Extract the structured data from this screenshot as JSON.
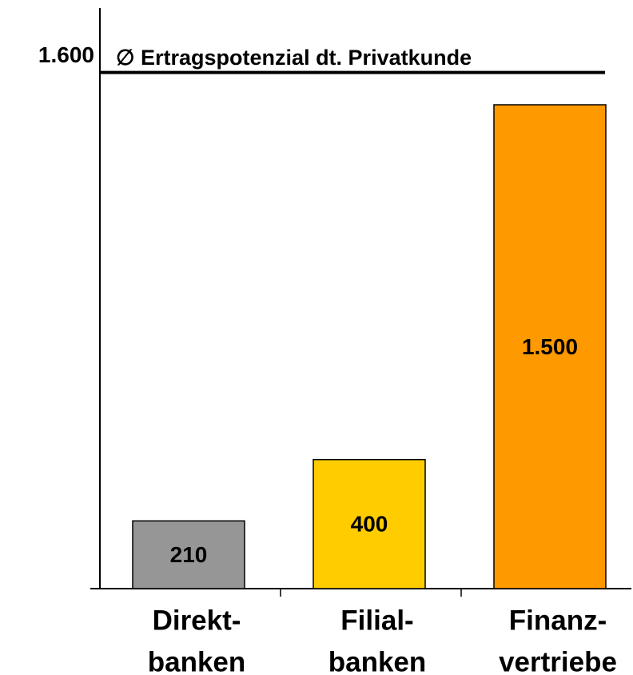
{
  "chart_data": {
    "type": "bar",
    "annotation": "∅ Ertragspotenzial dt. Privatkunde",
    "categories": [
      [
        "Direkt-",
        "banken"
      ],
      [
        "Filial-",
        "banken"
      ],
      [
        "Finanz-",
        "vertriebe"
      ]
    ],
    "values": [
      210,
      400,
      1500
    ],
    "value_labels": [
      "210",
      "400",
      "1.500"
    ],
    "colors": [
      "#969696",
      "#ffcc00",
      "#ff9900"
    ],
    "ylim": [
      0,
      1800
    ],
    "yticks": [
      {
        "value": 1600,
        "label": "1.600"
      }
    ]
  }
}
